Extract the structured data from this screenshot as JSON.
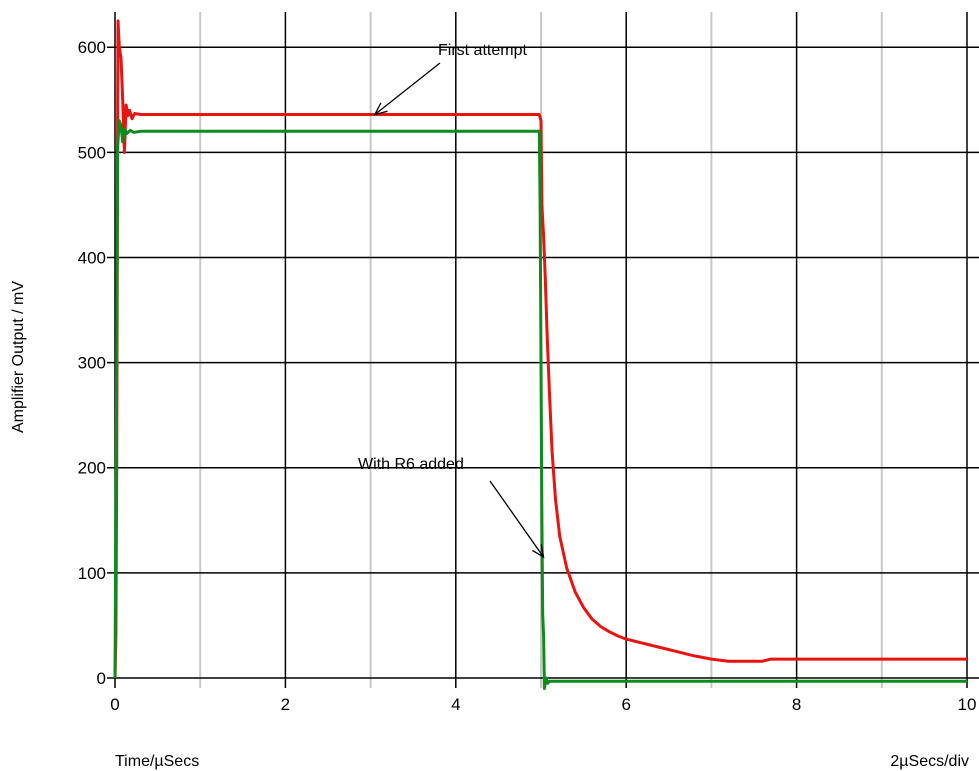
{
  "chart_data": {
    "type": "line",
    "title": "",
    "ylabel": "Amplifier Output / mV",
    "xlabel_left": "Time/µSecs",
    "xlabel_right": "2µSecs/div",
    "xlim": [
      0,
      10
    ],
    "ylim": [
      -10,
      630
    ],
    "x_ticks": [
      0,
      2,
      4,
      6,
      8,
      10
    ],
    "y_ticks": [
      0,
      100,
      200,
      300,
      400,
      500,
      600
    ],
    "x_minor_ticks": [
      1,
      3,
      5,
      7,
      9
    ],
    "grid": true,
    "legend": "none",
    "annotations": [
      {
        "text": "First attempt",
        "target_series": "red",
        "points_to": [
          3.05,
          536
        ]
      },
      {
        "text": "With R6 added",
        "target_series": "green",
        "points_to": [
          5.03,
          115
        ]
      }
    ],
    "series": [
      {
        "color": "#e8140f",
        "x": [
          0.0,
          0.01,
          0.02,
          0.03,
          0.035,
          0.05,
          0.07,
          0.09,
          0.11,
          0.13,
          0.15,
          0.17,
          0.2,
          0.23,
          0.3,
          1.0,
          2.0,
          3.0,
          4.0,
          4.98,
          5.0,
          5.01,
          5.03,
          5.05,
          5.07,
          5.1,
          5.13,
          5.17,
          5.22,
          5.3,
          5.4,
          5.5,
          5.6,
          5.7,
          5.8,
          5.9,
          6.0,
          6.1,
          6.2,
          6.4,
          6.6,
          6.8,
          7.0,
          7.2,
          7.6,
          7.7,
          8.0,
          9.0,
          10.0
        ],
        "y": [
          0,
          40,
          200,
          520,
          625,
          600,
          590,
          550,
          500,
          545,
          535,
          540,
          532,
          537,
          536,
          536,
          536,
          536,
          536,
          536,
          530,
          450,
          420,
          380,
          330,
          270,
          215,
          170,
          135,
          105,
          82,
          67,
          56,
          49,
          44,
          40,
          37,
          35,
          33,
          29,
          25,
          21,
          18,
          16,
          16,
          18,
          18,
          18,
          18
        ]
      },
      {
        "color": "#0f8a1e",
        "x": [
          0.0,
          0.02,
          0.03,
          0.05,
          0.07,
          0.09,
          0.11,
          0.14,
          0.18,
          0.22,
          0.3,
          1.0,
          2.0,
          3.0,
          4.0,
          4.98,
          4.99,
          5.0,
          5.01,
          5.02,
          5.03,
          5.04,
          5.06,
          5.08,
          5.1,
          6.0,
          7.0,
          8.0,
          9.0,
          10.0
        ],
        "y": [
          0,
          300,
          505,
          530,
          525,
          510,
          522,
          518,
          521,
          519,
          520,
          520,
          520,
          520,
          520,
          520,
          450,
          300,
          150,
          60,
          40,
          -10,
          0,
          -5,
          -3,
          -3,
          -3,
          -3,
          -3,
          -3
        ]
      }
    ]
  }
}
